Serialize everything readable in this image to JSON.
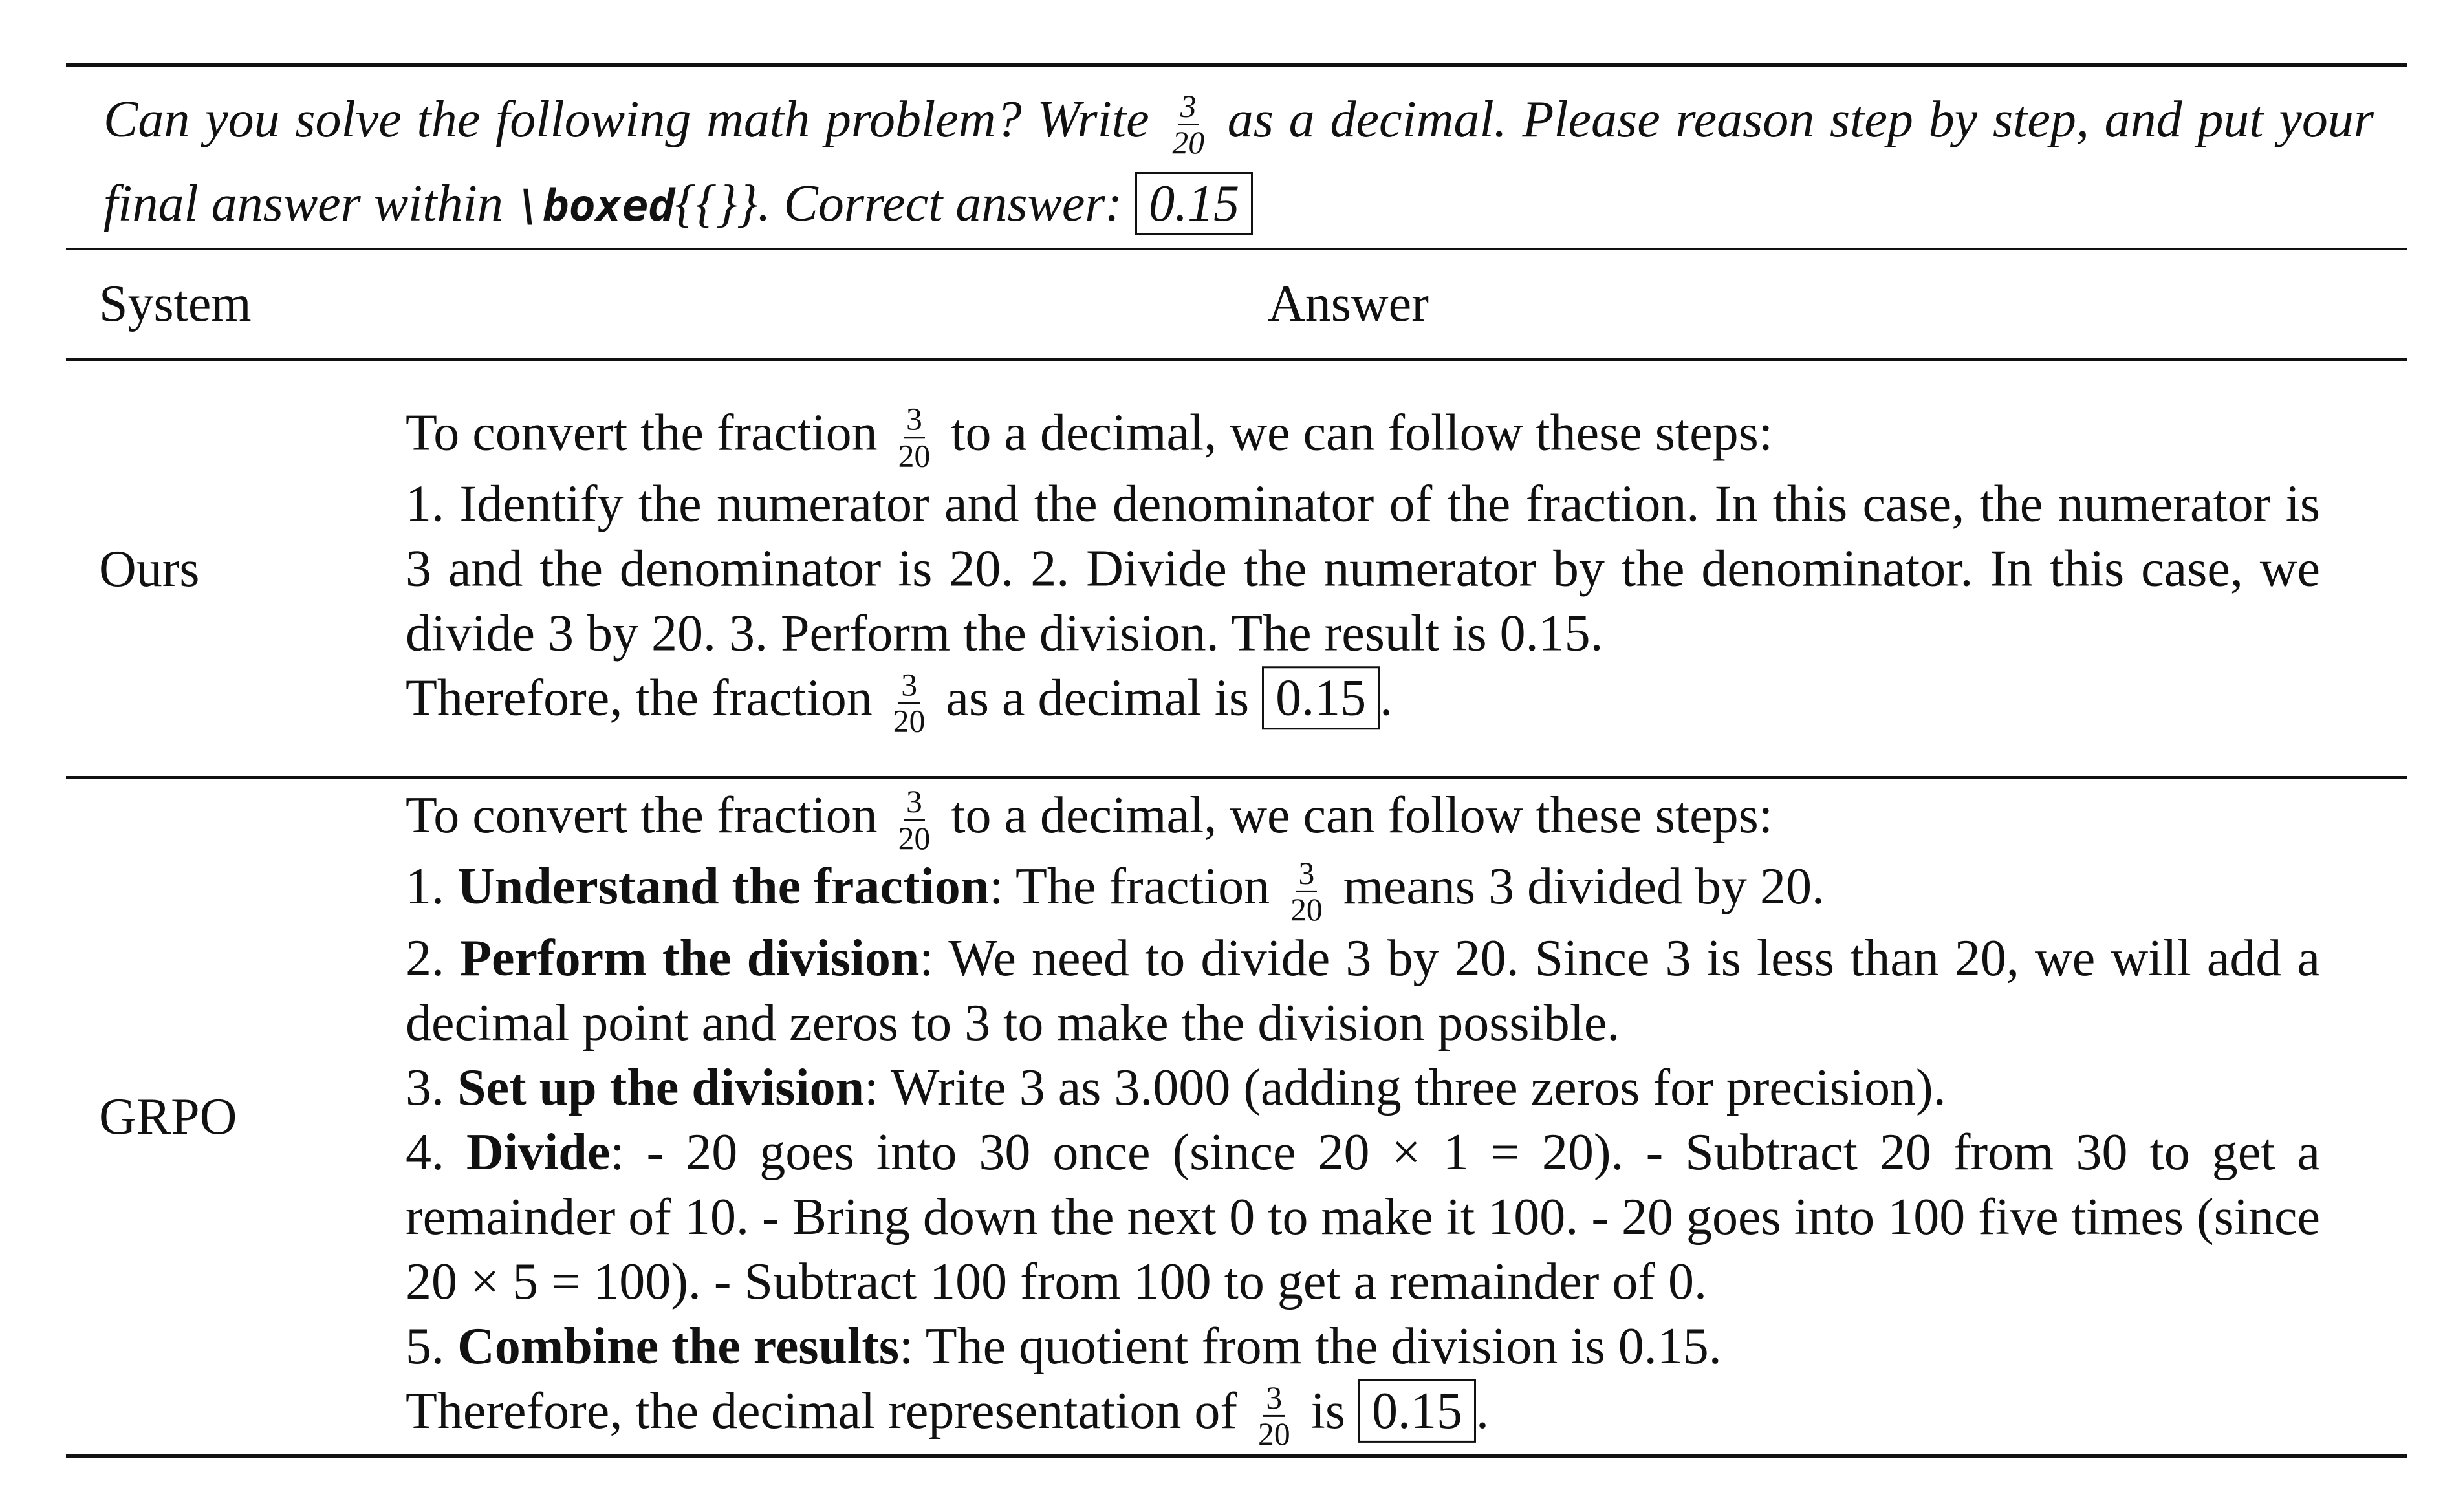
{
  "prompt": [
    {
      "text": "Can you solve the following math problem? Write "
    },
    {
      "num": "3",
      "den": "20"
    },
    {
      "text": " as a decimal. Please reason step by step, and put your final answer within "
    },
    {
      "code": "\\boxed"
    },
    {
      "text": "{{}}. Correct answer: "
    },
    {
      "boxed": "0.15"
    }
  ],
  "header": [
    "System",
    "Answer"
  ],
  "rows": [
    {
      "system": "Ours",
      "answer": [
        [
          {
            "text": "To convert the fraction "
          },
          {
            "num": "3",
            "den": "20"
          },
          {
            "text": " to a decimal, we can follow these steps:"
          }
        ],
        [
          {
            "text": "1. Identify the numerator and the denominator of the fraction. In this case, the numerator is 3 and the denominator is 20. 2. Divide the numerator by the denominator. In this case, we divide 3 by 20. 3. Perform the division. The result is 0.15."
          }
        ],
        [
          {
            "text": "Therefore, the fraction "
          },
          {
            "num": "3",
            "den": "20"
          },
          {
            "text": " as a decimal is "
          },
          {
            "boxed": "0.15"
          },
          {
            "text": "."
          }
        ]
      ]
    },
    {
      "system": "GRPO",
      "answer": [
        [
          {
            "text": "To convert the fraction "
          },
          {
            "num": "3",
            "den": "20"
          },
          {
            "text": " to a decimal, we can follow these steps:"
          }
        ],
        [
          {
            "text": "1. "
          },
          {
            "bold": "Understand the fraction"
          },
          {
            "text": ": The fraction "
          },
          {
            "num": "3",
            "den": "20"
          },
          {
            "text": " means 3 divided by 20."
          }
        ],
        [
          {
            "text": "2. "
          },
          {
            "bold": "Perform the division"
          },
          {
            "text": ": We need to divide 3 by 20. Since 3 is less than 20, we will add a decimal point and zeros to 3 to make the division possible."
          }
        ],
        [
          {
            "text": "3. "
          },
          {
            "bold": "Set up the division"
          },
          {
            "text": ": Write 3 as 3.000 (adding three zeros for precision)."
          }
        ],
        [
          {
            "text": "4. "
          },
          {
            "bold": "Divide"
          },
          {
            "text": ": - 20 goes into 30 once (since 20 × 1 = 20). - Subtract 20 from 30 to get a remainder of 10. - Bring down the next 0 to make it 100. - 20 goes into 100 five times (since 20 × 5 = 100). - Subtract 100 from 100 to get a remainder of 0."
          }
        ],
        [
          {
            "text": "5. "
          },
          {
            "bold": "Combine the results"
          },
          {
            "text": ": The quotient from the division is 0.15."
          }
        ],
        [
          {
            "text": "Therefore, the decimal representation of "
          },
          {
            "num": "3",
            "den": "20"
          },
          {
            "text": " is "
          },
          {
            "boxed": "0.15"
          },
          {
            "text": "."
          }
        ]
      ]
    }
  ]
}
